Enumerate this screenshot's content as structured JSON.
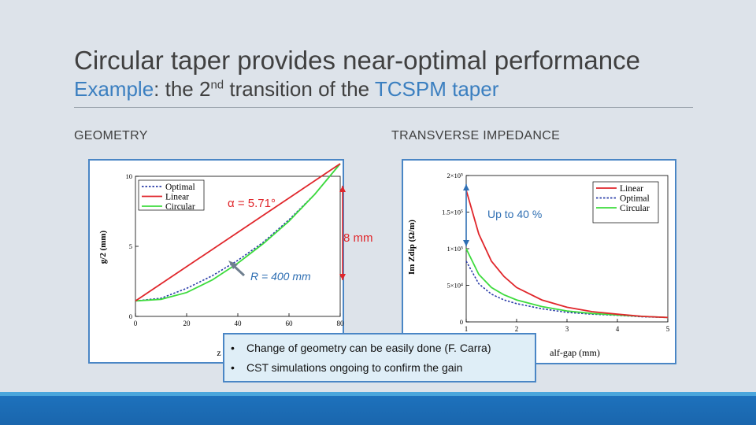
{
  "slide": {
    "title": "Circular taper provides near-optimal performance",
    "subtitle": {
      "part1": "Example",
      "part2": ": the 2",
      "sup": "nd",
      "part3": " transition of the ",
      "part4": "TCSPM taper"
    },
    "left_heading": "GEOMETRY",
    "right_heading": "TRANSVERSE IMPEDANCE",
    "bullets": [
      "Change of geometry can be easily done (F. Carra)",
      "CST simulations ongoing to confirm the gain"
    ]
  },
  "colors": {
    "accent": "#3b7fc0",
    "panel_border": "#4a86c5",
    "linear": "#e0262b",
    "optimal": "#2a3ca8",
    "circular": "#3ddb3d",
    "annotation_red": "#e0262b",
    "annotation_blue": "#2f6fb3",
    "arrow_gray": "#6f7f8f",
    "bottom_bar": "#1e73be"
  },
  "annotations": {
    "alpha": "α = 5.71°",
    "height": "8 mm",
    "radius": "R = 400 mm",
    "gain": "Up to 40 %"
  },
  "chart_data": [
    {
      "type": "line",
      "xlabel": "z",
      "ylabel": "g/2 (mm)",
      "xlim": [
        0,
        80
      ],
      "ylim": [
        0,
        10
      ],
      "xticks": [
        0,
        20,
        40,
        60,
        80
      ],
      "yticks": [
        0,
        5,
        10
      ],
      "legend": "top-left",
      "series": [
        {
          "name": "Optimal",
          "style": "dotted",
          "x": [
            0,
            10,
            20,
            30,
            40,
            50,
            60,
            70,
            80
          ],
          "y": [
            1.1,
            1.3,
            2.0,
            2.9,
            4.0,
            5.3,
            6.9,
            8.7,
            10.9
          ]
        },
        {
          "name": "Linear",
          "style": "solid",
          "x": [
            0,
            80
          ],
          "y": [
            1.1,
            10.9
          ]
        },
        {
          "name": "Circular",
          "style": "solid",
          "x": [
            0,
            10,
            20,
            30,
            40,
            50,
            60,
            70,
            80
          ],
          "y": [
            1.1,
            1.22,
            1.7,
            2.6,
            3.8,
            5.2,
            6.8,
            8.7,
            10.9
          ]
        }
      ]
    },
    {
      "type": "line",
      "xlabel": "alf-gap (mm)",
      "ylabel": "Im Zdip (Ω/m)",
      "xlim": [
        1,
        5
      ],
      "ylim": [
        0,
        200000
      ],
      "xticks": [
        "1",
        "2",
        "3",
        "4",
        "5"
      ],
      "yticks": [
        "0",
        "5×10⁴",
        "1×10⁵",
        "1.5×10⁵",
        "2×10⁵"
      ],
      "legend": "top-right",
      "series": [
        {
          "name": "Linear",
          "style": "solid",
          "x": [
            1,
            1.25,
            1.5,
            1.75,
            2,
            2.5,
            3,
            3.5,
            4,
            4.5,
            5
          ],
          "y": [
            180000,
            120000,
            83000,
            62000,
            47000,
            30000,
            20000,
            14000,
            10500,
            7500,
            6000
          ]
        },
        {
          "name": "Optimal",
          "style": "dotted",
          "x": [
            1,
            1.25,
            1.5,
            1.75,
            2,
            2.5,
            3,
            3.5,
            4,
            4.5,
            5
          ],
          "y": [
            83000,
            52000,
            38000,
            30000,
            25000,
            18000,
            13000,
            10500,
            9000,
            7000,
            6000
          ]
        },
        {
          "name": "Circular",
          "style": "solid",
          "x": [
            1,
            1.25,
            1.5,
            1.75,
            2,
            2.5,
            3,
            3.5,
            4,
            4.5,
            5
          ],
          "y": [
            100000,
            65000,
            47000,
            37000,
            30000,
            21000,
            15000,
            11500,
            9500,
            7500,
            6000
          ]
        }
      ]
    }
  ]
}
